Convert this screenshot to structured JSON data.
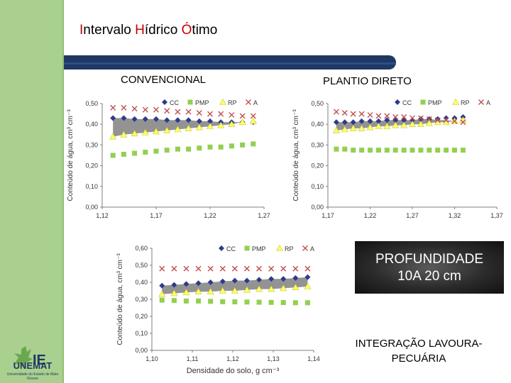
{
  "title": {
    "p1": "I",
    "p2": "ntervalo ",
    "p3": "H",
    "p4": "ídrico ",
    "p5": "Ó",
    "p6": "timo"
  },
  "labels": {
    "convencional": "CONVENCIONAL",
    "plantio_direto": "PLANTIO DIRETO",
    "depth_line1": "PROFUNDIDADE",
    "depth_line2": "10A 20 cm",
    "integracao": "INTEGRAÇÃO LAVOURA-PECUÁRIA"
  },
  "logo": {
    "name": "UNEMAT",
    "subtitle": "Universidade do Estado de Mato Grosso",
    "mark": "IE"
  },
  "colors": {
    "cc": "#2e3a8c",
    "pmp": "#92d050",
    "rp": "#ffff66",
    "a": "#c0504d",
    "band": "#808080"
  },
  "chart_data": [
    {
      "id": "convencional",
      "type": "scatter",
      "title": "CONVENCIONAL",
      "xlabel": "",
      "ylabel": "Conteúdo de água, cm³ cm⁻³",
      "xlim": [
        1.12,
        1.27
      ],
      "ylim": [
        0,
        0.5
      ],
      "xticks": [
        "1,12",
        "1,17",
        "1,22",
        "1,27"
      ],
      "yticks": [
        "0,00",
        "0,10",
        "0,20",
        "0,30",
        "0,40",
        "0,50"
      ],
      "legend": [
        "CC",
        "PMP",
        "RP",
        "A"
      ],
      "legend_placement": "top-right",
      "x": [
        1.13,
        1.14,
        1.15,
        1.16,
        1.17,
        1.18,
        1.19,
        1.2,
        1.21,
        1.22,
        1.23,
        1.24,
        1.25,
        1.26
      ],
      "series": [
        {
          "name": "CC",
          "values": [
            0.43,
            0.43,
            0.425,
            0.425,
            0.425,
            0.42,
            0.42,
            0.42,
            0.415,
            0.415,
            0.41,
            0.41,
            0.41,
            0.41
          ]
        },
        {
          "name": "PMP",
          "values": [
            0.25,
            0.255,
            0.26,
            0.265,
            0.27,
            0.275,
            0.28,
            0.28,
            0.285,
            0.29,
            0.29,
            0.295,
            0.3,
            0.305
          ]
        },
        {
          "name": "RP",
          "values": [
            0.34,
            0.35,
            0.355,
            0.36,
            0.365,
            0.37,
            0.375,
            0.38,
            0.385,
            0.39,
            0.395,
            0.4,
            0.41,
            0.415
          ]
        },
        {
          "name": "A",
          "values": [
            0.48,
            0.48,
            0.475,
            0.47,
            0.47,
            0.465,
            0.46,
            0.46,
            0.455,
            0.45,
            0.45,
            0.445,
            0.44,
            0.44
          ]
        }
      ]
    },
    {
      "id": "plantio_direto",
      "type": "scatter",
      "title": "PLANTIO DIRETO",
      "xlabel": "",
      "ylabel": "Conteúdo de água, cm³ cm⁻³",
      "xlim": [
        1.17,
        1.37
      ],
      "ylim": [
        0,
        0.5
      ],
      "xticks": [
        "1,17",
        "1,22",
        "1,27",
        "1,32",
        "1,37"
      ],
      "yticks": [
        "0,00",
        "0,10",
        "0,20",
        "0,30",
        "0,40",
        "0,50"
      ],
      "legend": [
        "CC",
        "PMP",
        "RP",
        "A"
      ],
      "legend_placement": "top-right",
      "x": [
        1.18,
        1.19,
        1.2,
        1.21,
        1.22,
        1.23,
        1.24,
        1.25,
        1.26,
        1.27,
        1.28,
        1.29,
        1.3,
        1.31,
        1.32,
        1.33
      ],
      "series": [
        {
          "name": "CC",
          "values": [
            0.41,
            0.41,
            0.41,
            0.415,
            0.415,
            0.415,
            0.42,
            0.42,
            0.42,
            0.42,
            0.425,
            0.425,
            0.425,
            0.43,
            0.43,
            0.435
          ]
        },
        {
          "name": "PMP",
          "values": [
            0.28,
            0.28,
            0.275,
            0.275,
            0.275,
            0.275,
            0.275,
            0.275,
            0.275,
            0.275,
            0.275,
            0.275,
            0.275,
            0.275,
            0.275,
            0.275
          ]
        },
        {
          "name": "RP",
          "values": [
            0.37,
            0.375,
            0.38,
            0.38,
            0.385,
            0.39,
            0.39,
            0.395,
            0.395,
            0.4,
            0.4,
            0.405,
            0.41,
            0.41,
            0.415,
            0.42
          ]
        },
        {
          "name": "A",
          "values": [
            0.46,
            0.455,
            0.45,
            0.45,
            0.445,
            0.44,
            0.44,
            0.435,
            0.435,
            0.43,
            0.43,
            0.425,
            0.42,
            0.42,
            0.415,
            0.41
          ]
        }
      ]
    },
    {
      "id": "integracao",
      "type": "scatter",
      "title": "INTEGRAÇÃO LAVOURA-PECUÁRIA",
      "xlabel": "Densidade do solo, g cm⁻³",
      "ylabel": "Conteúdo de água, cm³ cm⁻³",
      "xlim": [
        1.1,
        1.14
      ],
      "ylim": [
        0,
        0.6
      ],
      "xticks": [
        "1,10",
        "1,11",
        "1,12",
        "1,13",
        "1,14"
      ],
      "yticks": [
        "0,00",
        "0,10",
        "0,20",
        "0,30",
        "0,40",
        "0,50",
        "0,60"
      ],
      "legend": [
        "CC",
        "PMP",
        "RP",
        "A"
      ],
      "legend_placement": "top-right",
      "x": [
        1.1025,
        1.1055,
        1.1085,
        1.1115,
        1.1145,
        1.1175,
        1.1205,
        1.1235,
        1.1265,
        1.1295,
        1.1325,
        1.1355,
        1.1385
      ],
      "series": [
        {
          "name": "CC",
          "values": [
            0.38,
            0.385,
            0.39,
            0.395,
            0.4,
            0.405,
            0.41,
            0.41,
            0.415,
            0.42,
            0.42,
            0.425,
            0.43
          ]
        },
        {
          "name": "PMP",
          "values": [
            0.295,
            0.293,
            0.29,
            0.29,
            0.288,
            0.286,
            0.285,
            0.284,
            0.283,
            0.282,
            0.281,
            0.28,
            0.28
          ]
        },
        {
          "name": "RP",
          "values": [
            0.33,
            0.335,
            0.34,
            0.345,
            0.345,
            0.35,
            0.35,
            0.355,
            0.36,
            0.36,
            0.365,
            0.37,
            0.375
          ]
        },
        {
          "name": "A",
          "values": [
            0.48,
            0.48,
            0.48,
            0.48,
            0.48,
            0.48,
            0.48,
            0.48,
            0.48,
            0.48,
            0.48,
            0.48,
            0.48
          ]
        }
      ]
    }
  ]
}
